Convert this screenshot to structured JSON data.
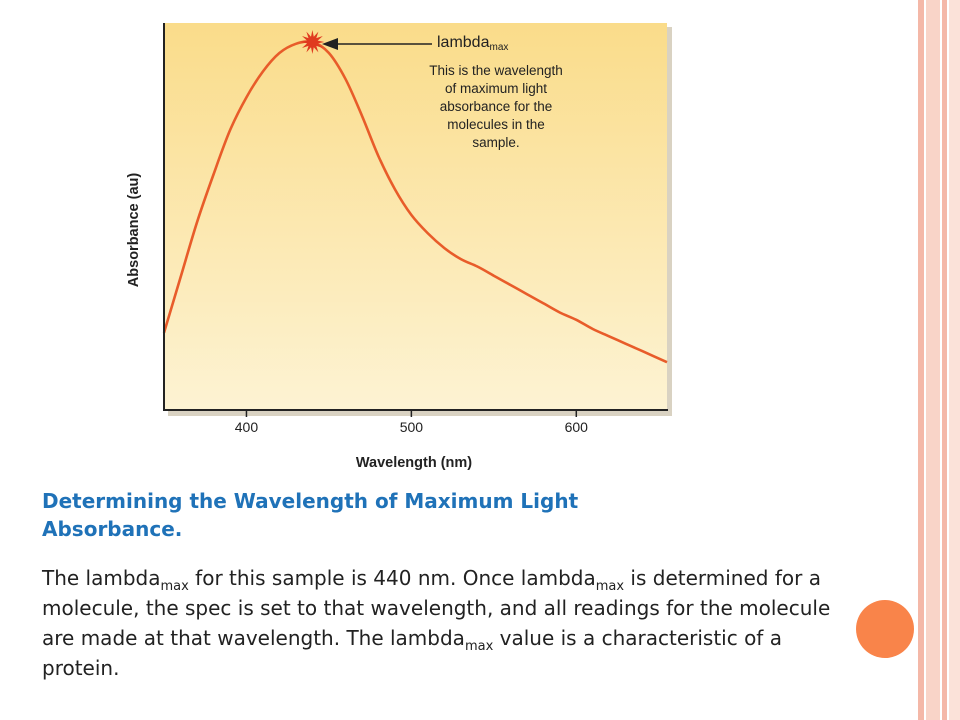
{
  "colors": {
    "plot_bg_top": "#fadc8a",
    "plot_bg_bottom": "#fdf3d3",
    "curve": "#e85c2a",
    "peak_marker": "#e03a1f",
    "heading": "#1f72b8",
    "accent_circle": "#f9844a",
    "border_stripes": [
      "#f4b8a8",
      "#f9d4c8",
      "#f4b8a8",
      "#fbe2d9"
    ]
  },
  "chart_data": {
    "type": "line",
    "title": "",
    "xlabel": "Wavelength (nm)",
    "ylabel": "Absorbance (au)",
    "xlim": [
      350,
      655
    ],
    "ylim": [
      0,
      1
    ],
    "x_ticks": [
      400,
      500,
      600
    ],
    "y_ticks": [],
    "grid": false,
    "legend": "none",
    "series": [
      {
        "x": [
          350,
          360,
          370,
          380,
          390,
          400,
          410,
          420,
          430,
          440,
          450,
          460,
          470,
          480,
          490,
          500,
          510,
          520,
          530,
          540,
          550,
          560,
          570,
          580,
          590,
          600,
          610,
          620,
          630,
          640,
          655
        ],
        "y": [
          0.21,
          0.36,
          0.51,
          0.64,
          0.76,
          0.85,
          0.92,
          0.97,
          0.995,
          1.0,
          0.97,
          0.9,
          0.8,
          0.69,
          0.6,
          0.53,
          0.48,
          0.44,
          0.41,
          0.39,
          0.365,
          0.34,
          0.315,
          0.29,
          0.265,
          0.245,
          0.22,
          0.2,
          0.18,
          0.16,
          0.13
        ]
      }
    ],
    "annotations": {
      "peak_x": 440,
      "title": "lambda",
      "title_sub": "max",
      "lines": [
        "This is the wavelength",
        "of maximum light",
        "absorbance for the",
        "molecules in the",
        "sample."
      ]
    }
  },
  "caption": {
    "heading_line1": "Determining the Wavelength of Maximum Light",
    "heading_line2": "Absorbance.",
    "body": {
      "p1": "The lambda",
      "sub1": "max",
      "p2": " for this sample is 440 nm. Once lambda",
      "sub2": "max",
      "p3": " is determined for a molecule, the spec is set to that wavelength, and all readings for the molecule are made at that wavelength. The lambda",
      "sub3": "max",
      "p4": " value is a characteristic of a protein."
    }
  }
}
